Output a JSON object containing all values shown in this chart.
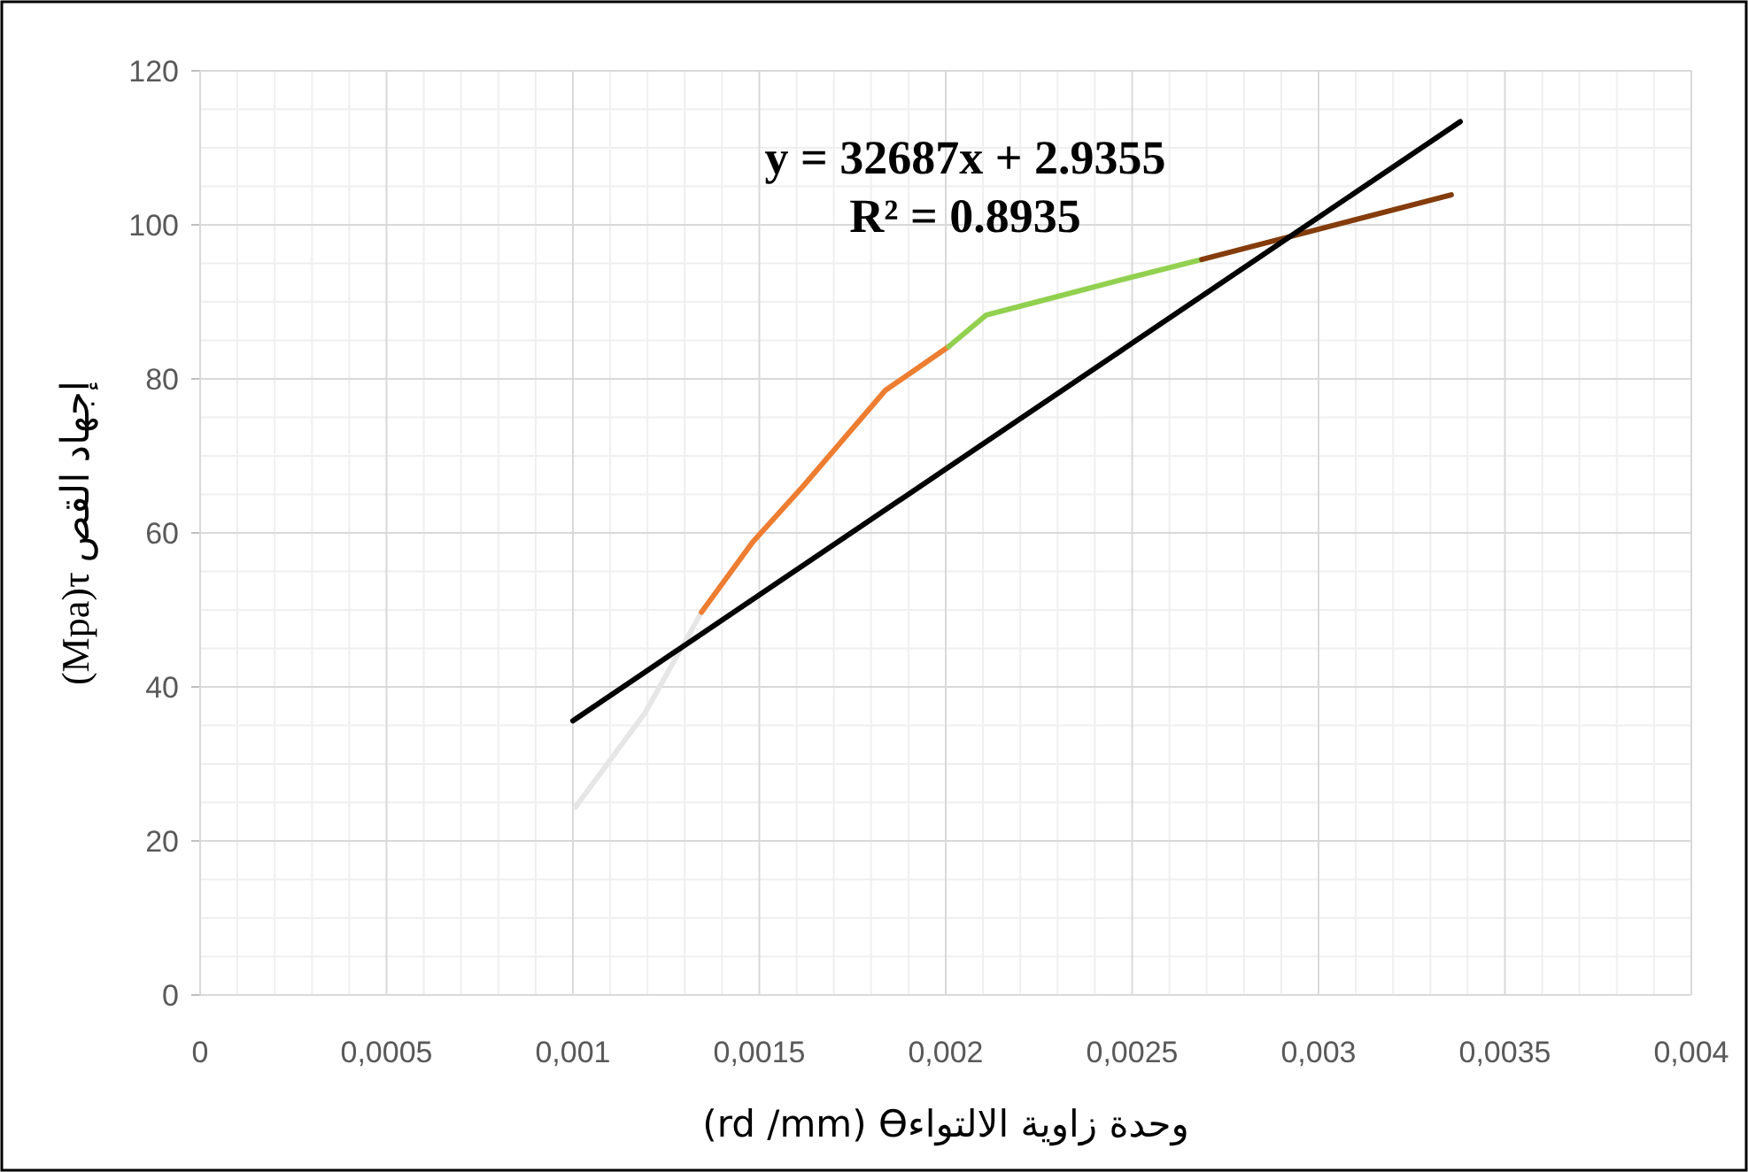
{
  "chart_data": {
    "type": "line",
    "xlabel": "(rd /mm) ϴوحدة زاوية الالتواء",
    "ylabel": "(Mpa)τ إجهاد القص",
    "annotations": [
      "y = 32687x + 2.9355",
      "R² = 0.8935"
    ],
    "series": [
      {
        "color": "#e7e6e6",
        "x": [
          0.001007,
          0.001193,
          0.001345
        ],
        "values": [
          24.4,
          36.6,
          49.7
        ]
      },
      {
        "color": "#ed7d31",
        "x": [
          0.001345,
          0.001482,
          0.001618,
          0.001838,
          0.002008
        ],
        "values": [
          49.7,
          58.8,
          66.1,
          78.5,
          84.2
        ]
      },
      {
        "color": "#92d050",
        "x": [
          0.002008,
          0.002109,
          0.002245,
          0.002466,
          0.002687
        ],
        "values": [
          84.2,
          88.3,
          90.0,
          92.8,
          95.5
        ]
      },
      {
        "color": "#843c0c",
        "x": [
          0.002687,
          0.003356
        ],
        "values": [
          95.5,
          103.9
        ]
      },
      {
        "color": "#000000",
        "x": [
          0.001,
          0.00338
        ],
        "values": [
          35.6,
          113.4
        ]
      }
    ],
    "xlim": [
      0,
      0.004
    ],
    "ylim": [
      0,
      120
    ],
    "xticks": [
      0,
      {
        "value": 0.0005,
        "label": "0,0005"
      },
      {
        "value": 0.001,
        "label": "0,001"
      },
      {
        "value": 0.0015,
        "label": "0,0015"
      },
      {
        "value": 0.002,
        "label": "0,002"
      },
      {
        "value": 0.0025,
        "label": "0,0025"
      },
      {
        "value": 0.003,
        "label": "0,003"
      },
      {
        "value": 0.0035,
        "label": "0,0035"
      },
      {
        "value": 0.004,
        "label": "0,004"
      }
    ],
    "yticks": [
      0,
      20,
      40,
      60,
      80,
      100,
      120
    ],
    "grid": true
  }
}
